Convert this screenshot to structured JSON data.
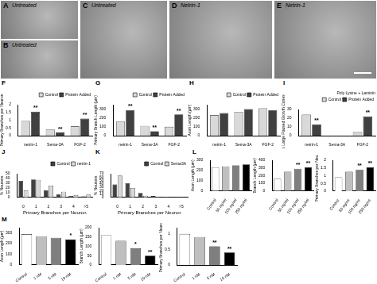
{
  "images": [
    {
      "panel": "A",
      "label": "Untreated"
    },
    {
      "panel": "B",
      "label": "Untreated"
    },
    {
      "panel": "C",
      "label": "Untreated"
    },
    {
      "panel": "D",
      "label": "Netrin-1"
    },
    {
      "panel": "E",
      "label": "Netrin-1"
    }
  ],
  "chart_data": [
    {
      "type": "bar",
      "panel": "F",
      "y_label": "Primary Branches per Neuron",
      "categories": [
        "netrin-1",
        "Sema-3A",
        "FGF-2"
      ],
      "series": [
        {
          "name": "Control",
          "color": "#d9d9d9",
          "values": [
            0.95,
            0.4,
            0.6
          ]
        },
        {
          "name": "Protein Added",
          "color": "#404040",
          "values": [
            1.55,
            0.2,
            1.1
          ],
          "annotations": [
            "**",
            "**",
            "**"
          ]
        }
      ],
      "ylim": [
        0,
        2
      ],
      "yticks": [
        0,
        0.5,
        1,
        1.5,
        2
      ],
      "legend": "top",
      "grid": false
    },
    {
      "type": "bar",
      "panel": "G",
      "y_label": "Primary Branch Length (µm)",
      "categories": [
        "netrin-1",
        "Sema-3A",
        "FGF-2"
      ],
      "series": [
        {
          "name": "Control",
          "color": "#d9d9d9",
          "values": [
            160,
            110,
            100
          ]
        },
        {
          "name": "Protein Added",
          "color": "#404040",
          "values": [
            290,
            50,
            240
          ],
          "annotations": [
            "**",
            "**",
            "**"
          ]
        }
      ],
      "ylim": [
        0,
        350
      ],
      "yticks": [
        0,
        100,
        200,
        300
      ],
      "legend": "top",
      "grid": false
    },
    {
      "type": "bar",
      "panel": "H",
      "y_label": "Axon Length (µm)",
      "categories": [
        "netrin-1",
        "Sema-3A",
        "FGF-2"
      ],
      "series": [
        {
          "name": "Control",
          "color": "#d9d9d9",
          "values": [
            230,
            270,
            310
          ]
        },
        {
          "name": "Protein Added",
          "color": "#404040",
          "values": [
            255,
            300,
            290
          ]
        }
      ],
      "ylim": [
        0,
        350
      ],
      "yticks": [
        0,
        100,
        200,
        300
      ],
      "legend": "top",
      "grid": false
    },
    {
      "type": "bar",
      "panel": "I",
      "y_label": "% Large Paused Growth Cones",
      "annotation": "Poly Lysine + Laminin",
      "categories": [
        "netrin-1",
        "Sema-3A",
        "FGF-2"
      ],
      "series": [
        {
          "name": "Control",
          "color": "#d9d9d9",
          "values": [
            24,
            0,
            4
          ]
        },
        {
          "name": "Protein Added",
          "color": "#404040",
          "values": [
            13,
            0,
            22
          ],
          "annotations": [
            "**",
            null,
            "**"
          ]
        }
      ],
      "ylim": [
        0,
        30
      ],
      "yticks": [
        0,
        10,
        20,
        30
      ],
      "legend": "top",
      "grid": false
    },
    {
      "type": "bar",
      "panel": "J",
      "y_label": "% Neurons",
      "x_label": "Primary Branches per Neuron",
      "categories": [
        "0",
        "1",
        "2",
        "3",
        "4",
        ">5"
      ],
      "series": [
        {
          "name": "Control",
          "color": "#404040",
          "values": [
            35,
            38,
            15,
            7,
            3,
            2
          ]
        },
        {
          "name": "netrin-1",
          "color": "#d9d9d9",
          "values": [
            15,
            37,
            25,
            12,
            5,
            6
          ]
        }
      ],
      "ylim": [
        0,
        50
      ],
      "yticks": [
        0,
        10,
        20,
        30,
        40,
        50
      ],
      "legend": "top",
      "grid": false
    },
    {
      "type": "bar",
      "panel": "K",
      "y_label": "% Neurons",
      "x_label": "Primary Branches per Neuron",
      "categories": [
        "0",
        "1",
        "2",
        "3",
        "4",
        ">5"
      ],
      "series": [
        {
          "name": "Control",
          "color": "#404040",
          "values": [
            38,
            42,
            13,
            4,
            2,
            1
          ]
        },
        {
          "name": "Sema3A",
          "color": "#d9d9d9",
          "values": [
            65,
            28,
            5,
            1,
            0,
            0
          ]
        }
      ],
      "ylim": [
        0,
        70
      ],
      "yticks": [
        0,
        10,
        20,
        30,
        40,
        50,
        60,
        70
      ],
      "legend": "top",
      "grid": false
    },
    {
      "type": "bar",
      "panel": "L",
      "y_label": "Axon Length (µm)",
      "categories": [
        "Control",
        "50 ng/ml",
        "100 ng/ml",
        "250 ng/ml"
      ],
      "values": [
        230,
        240,
        250,
        260
      ],
      "colors": [
        "#ffffff",
        "#bfbfbf",
        "#7f7f7f",
        "#000000"
      ],
      "ylim": [
        0,
        300
      ],
      "yticks": [
        0,
        100,
        200,
        300
      ],
      "grid": false
    },
    {
      "type": "bar",
      "y_label": "Branch Length (µm)",
      "categories": [
        "Control",
        "50 ng/ml",
        "100 ng/ml",
        "250 ng/ml"
      ],
      "values": [
        160,
        250,
        290,
        310
      ],
      "colors": [
        "#ffffff",
        "#bfbfbf",
        "#7f7f7f",
        "#000000"
      ],
      "annotations": [
        null,
        null,
        "**",
        "**"
      ],
      "ylim": [
        0,
        400
      ],
      "yticks": [
        0,
        100,
        200,
        300,
        400
      ],
      "grid": false
    },
    {
      "type": "bar",
      "y_label": "Primary Branches per Neuron",
      "categories": [
        "Control",
        "50 ng/ml",
        "100 ng/ml",
        "250 ng/ml"
      ],
      "values": [
        0.9,
        1.25,
        1.4,
        1.55
      ],
      "colors": [
        "#ffffff",
        "#bfbfbf",
        "#7f7f7f",
        "#000000"
      ],
      "annotations": [
        null,
        null,
        "**",
        "**"
      ],
      "ylim": [
        0,
        2
      ],
      "yticks": [
        0,
        0.5,
        1,
        1.5,
        2
      ],
      "grid": false
    },
    {
      "type": "bar",
      "panel": "M",
      "y_label": "Axon Length (µm)",
      "categories": [
        "Control",
        "1 nM",
        "5 nM",
        "10 nM"
      ],
      "values": [
        290,
        270,
        255,
        240
      ],
      "colors": [
        "#ffffff",
        "#bfbfbf",
        "#7f7f7f",
        "#000000"
      ],
      "annotations": [
        null,
        null,
        null,
        "*"
      ],
      "ylim": [
        0,
        350
      ],
      "yticks": [
        0,
        100,
        200,
        300
      ],
      "grid": false
    },
    {
      "type": "bar",
      "y_label": "Branch Length (µm)",
      "categories": [
        "Control",
        "1 nM",
        "5 nM",
        "10 nM"
      ],
      "values": [
        160,
        130,
        90,
        50
      ],
      "colors": [
        "#ffffff",
        "#bfbfbf",
        "#7f7f7f",
        "#000000"
      ],
      "annotations": [
        null,
        null,
        "*",
        "**"
      ],
      "ylim": [
        0,
        200
      ],
      "yticks": [
        0,
        50,
        100,
        150,
        200
      ],
      "grid": false
    },
    {
      "type": "bar",
      "y_label": "Primary Branches per Neuron",
      "categories": [
        "Control",
        "1 nM",
        "5 nM",
        "10 nM"
      ],
      "values": [
        1.0,
        0.9,
        0.6,
        0.4
      ],
      "colors": [
        "#ffffff",
        "#bfbfbf",
        "#7f7f7f",
        "#000000"
      ],
      "annotations": [
        null,
        null,
        "**",
        "**"
      ],
      "ylim": [
        0,
        1.2
      ],
      "yticks": [
        0,
        0.5,
        1
      ],
      "grid": false
    }
  ]
}
